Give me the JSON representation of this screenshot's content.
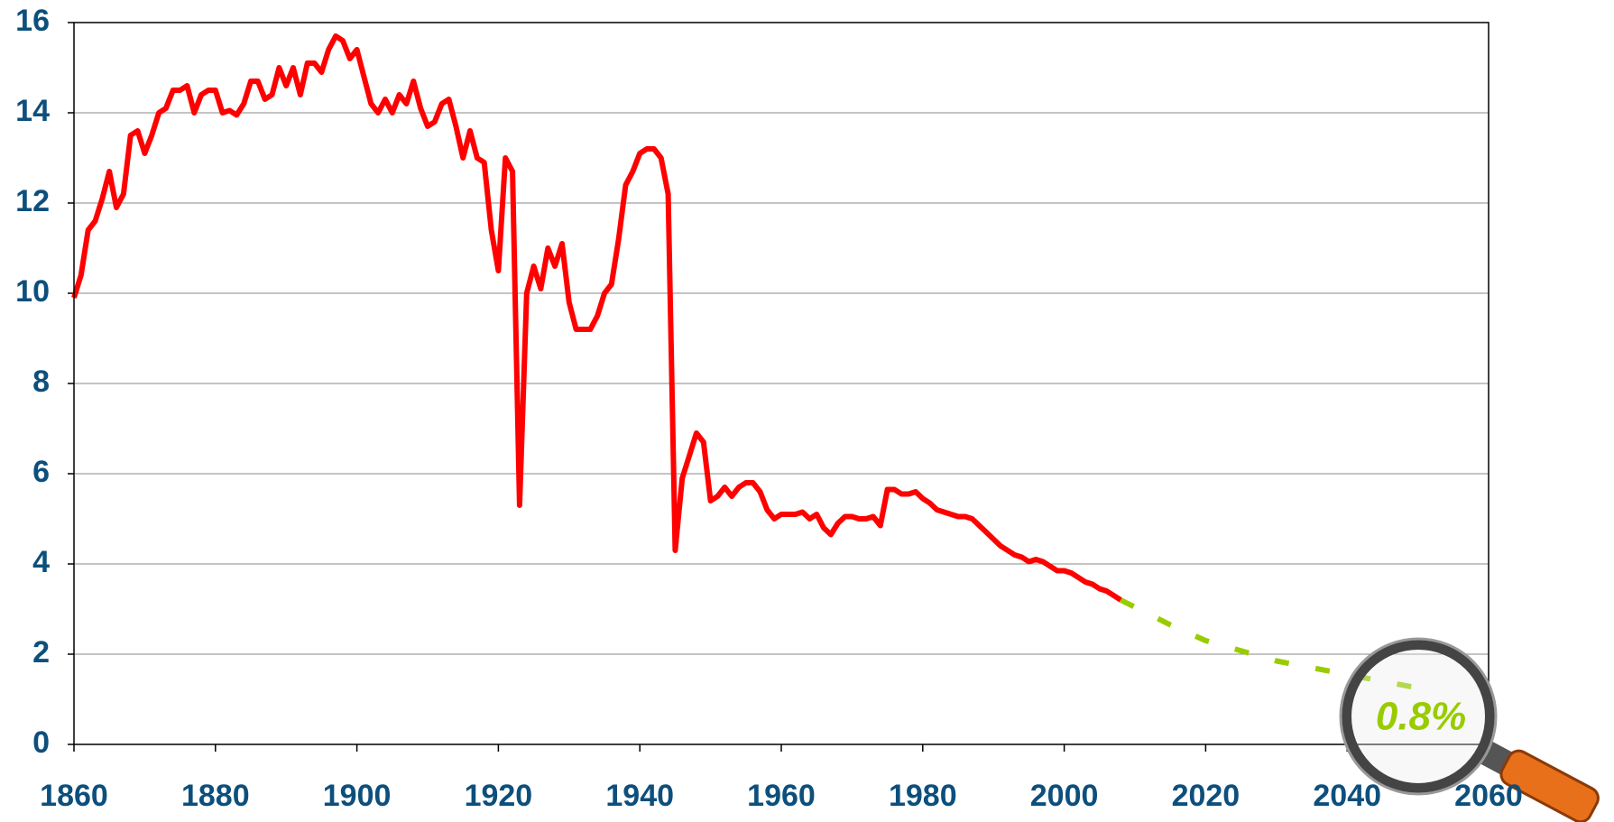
{
  "chart_data": {
    "type": "line",
    "series": [
      {
        "color": "#ff0000",
        "style": "solid",
        "x": [
          1860,
          1861,
          1862,
          1863,
          1864,
          1865,
          1866,
          1867,
          1868,
          1869,
          1870,
          1871,
          1872,
          1873,
          1874,
          1875,
          1876,
          1877,
          1878,
          1879,
          1880,
          1881,
          1882,
          1883,
          1884,
          1885,
          1886,
          1887,
          1888,
          1889,
          1890,
          1891,
          1892,
          1893,
          1894,
          1895,
          1896,
          1897,
          1898,
          1899,
          1900,
          1901,
          1902,
          1903,
          1904,
          1905,
          1906,
          1907,
          1908,
          1909,
          1910,
          1911,
          1912,
          1913,
          1914,
          1915,
          1916,
          1917,
          1918,
          1919,
          1920,
          1921,
          1922,
          1923,
          1924,
          1925,
          1926,
          1927,
          1928,
          1929,
          1930,
          1931,
          1932,
          1933,
          1934,
          1935,
          1936,
          1937,
          1938,
          1939,
          1940,
          1941,
          1942,
          1943,
          1944,
          1945,
          1946,
          1947,
          1948,
          1949,
          1950,
          1951,
          1952,
          1953,
          1954,
          1955,
          1956,
          1957,
          1958,
          1959,
          1960,
          1961,
          1962,
          1963,
          1964,
          1965,
          1966,
          1967,
          1968,
          1969,
          1970,
          1971,
          1972,
          1973,
          1974,
          1975,
          1976,
          1977,
          1978,
          1979,
          1980,
          1981,
          1982,
          1983,
          1984,
          1985,
          1986,
          1987,
          1988,
          1989,
          1990,
          1991,
          1992,
          1993,
          1994,
          1995,
          1996,
          1997,
          1998,
          1999,
          2000,
          2001,
          2002,
          2003,
          2004,
          2005,
          2006,
          2007,
          2008
        ],
        "values": [
          9.9,
          10.4,
          11.4,
          11.6,
          12.1,
          12.7,
          11.9,
          12.2,
          13.5,
          13.6,
          13.1,
          13.5,
          14.0,
          14.1,
          14.5,
          14.5,
          14.6,
          14.0,
          14.4,
          14.5,
          14.5,
          14.0,
          14.05,
          13.95,
          14.2,
          14.7,
          14.7,
          14.3,
          14.4,
          15.0,
          14.6,
          15.0,
          14.4,
          15.1,
          15.1,
          14.9,
          15.4,
          15.7,
          15.6,
          15.2,
          15.4,
          14.8,
          14.2,
          14.0,
          14.3,
          14.0,
          14.4,
          14.2,
          14.7,
          14.1,
          13.7,
          13.8,
          14.2,
          14.3,
          13.7,
          13.0,
          13.6,
          13.0,
          12.9,
          11.4,
          10.5,
          13.0,
          12.7,
          5.3,
          10.0,
          10.6,
          10.1,
          11.0,
          10.6,
          11.1,
          9.8,
          9.2,
          9.2,
          9.2,
          9.5,
          10.0,
          10.2,
          11.2,
          12.4,
          12.7,
          13.1,
          13.2,
          13.2,
          13.0,
          12.2,
          4.3,
          5.9,
          6.4,
          6.9,
          6.7,
          5.4,
          5.5,
          5.7,
          5.5,
          5.7,
          5.8,
          5.8,
          5.6,
          5.2,
          5.0,
          5.1,
          5.1,
          5.1,
          5.15,
          5.0,
          5.1,
          4.8,
          4.65,
          4.9,
          5.05,
          5.05,
          5.0,
          5.0,
          5.05,
          4.85,
          5.65,
          5.65,
          5.55,
          5.55,
          5.6,
          5.45,
          5.35,
          5.2,
          5.15,
          5.1,
          5.05,
          5.05,
          5.0,
          4.85,
          4.7,
          4.55,
          4.4,
          4.3,
          4.2,
          4.15,
          4.05,
          4.1,
          4.05,
          3.95,
          3.85,
          3.85,
          3.8,
          3.7,
          3.6,
          3.55,
          3.45,
          3.4,
          3.3,
          3.2
        ]
      },
      {
        "color": "#99cc00",
        "style": "dashed",
        "x": [
          2008,
          2015,
          2020,
          2030,
          2040,
          2050
        ],
        "values": [
          3.2,
          2.65,
          2.3,
          1.85,
          1.55,
          1.25
        ]
      }
    ],
    "annotation": "0.8%",
    "xlim": [
      1860,
      2060
    ],
    "xticks": [
      1860,
      1880,
      1900,
      1920,
      1940,
      1960,
      1980,
      2000,
      2020,
      2040,
      2060
    ],
    "ylim": [
      0,
      16
    ],
    "yticks": [
      0,
      2,
      4,
      6,
      8,
      10,
      12,
      14,
      16
    ],
    "grid": true
  }
}
